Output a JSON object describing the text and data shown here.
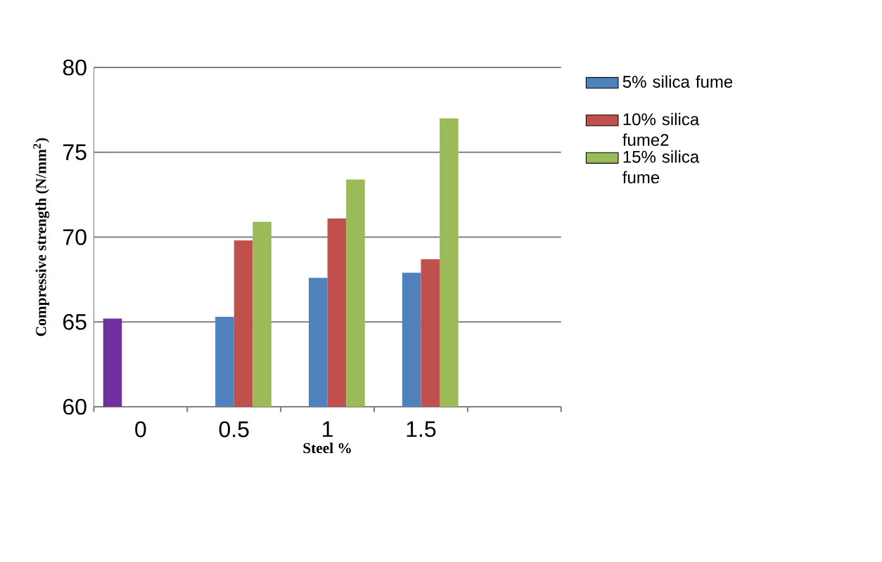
{
  "chart_data": {
    "type": "bar",
    "xlabel": "Steel %",
    "ylabel": "Compressive strength (N/mm$^{2}$)",
    "categories": [
      "0",
      "0.5",
      "1",
      "1.5",
      null
    ],
    "series": [
      {
        "color": "#7030a0",
        "values": [
          65.2,
          null,
          null,
          null,
          null
        ]
      },
      {
        "name": "5% silica fume",
        "color": "#4f81bd",
        "values": [
          null,
          65.3,
          67.6,
          67.9,
          null
        ]
      },
      {
        "name": "10% silica fume2",
        "color": "#c0504d",
        "values": [
          null,
          69.8,
          71.1,
          68.7,
          null
        ]
      },
      {
        "name": "15% silica fume",
        "color": "#9bbb59",
        "values": [
          null,
          70.9,
          73.4,
          77.0,
          null
        ]
      }
    ],
    "ylim": [
      60,
      80
    ],
    "yticks": [
      60,
      65,
      70,
      75,
      80
    ],
    "grid": "y",
    "legend": "right"
  }
}
